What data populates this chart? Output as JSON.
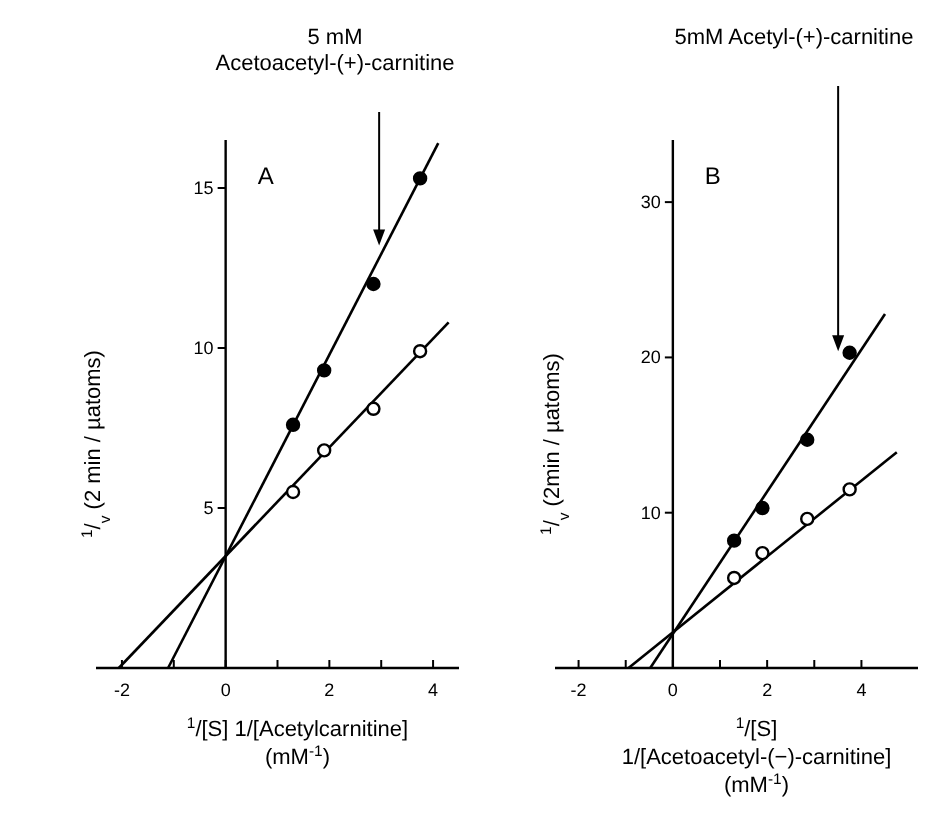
{
  "chart_data": [
    {
      "type": "scatter",
      "title": "A",
      "xlabel": "$^{1}$/[S]  1/[Acetylcarnitine]  (mM$^{-1}$)",
      "ylabel": "$^{1}$/$_{v}$  (2 min / µatoms)",
      "xlim": [
        -2.5,
        4.5
      ],
      "ylim": [
        0,
        16.5
      ],
      "xticks": [
        -2,
        {
          "value": -1,
          "label": null
        },
        0,
        {
          "value": 1,
          "label": null
        },
        2,
        {
          "value": 3,
          "label": null
        },
        4
      ],
      "yticks": [
        5,
        10,
        15
      ],
      "annotations": [
        "5 mM Acetoacetyl-(+)-carnitine"
      ],
      "series": [
        {
          "color": "#000000",
          "marker": "circle",
          "x": [
            1.3,
            1.9,
            2.85,
            3.75
          ],
          "values": [
            7.6,
            9.3,
            12,
            15.3
          ]
        },
        {
          "color": "#ffffff",
          "marker": "circle",
          "x": [
            1.3,
            1.9,
            2.85,
            3.75
          ],
          "values": [
            5.5,
            6.8,
            8.1,
            9.9
          ]
        },
        {
          "type": "line",
          "color": "#000000",
          "x": [
            -1.11,
            4.1
          ],
          "values": [
            0,
            16.4
          ]
        },
        {
          "type": "line",
          "color": "#000000",
          "x": [
            -2.06,
            4.3
          ],
          "values": [
            0,
            10.8
          ]
        }
      ]
    },
    {
      "type": "scatter",
      "title": "B",
      "xlabel": "$^{1}$/[S]  1/[Acetoacetyl-(−)-carnitine]  (mM$^{-1}$)",
      "ylabel": "$^{1}$/$_{v}$  (2min / µatoms)",
      "xlim": [
        -2.5,
        5.2
      ],
      "ylim": [
        0,
        34
      ],
      "xticks": [
        -2,
        {
          "value": -1,
          "label": null
        },
        0,
        {
          "value": 1,
          "label": null
        },
        2,
        {
          "value": 3,
          "label": null
        },
        4
      ],
      "yticks": [
        10,
        20,
        30
      ],
      "annotations": [
        "5mM Acetyl-(+)-carnitine"
      ],
      "series": [
        {
          "color": "#000000",
          "marker": "circle",
          "x": [
            1.3,
            1.9,
            2.85,
            3.75
          ],
          "values": [
            8.2,
            10.3,
            14.7,
            20.3
          ]
        },
        {
          "color": "#ffffff",
          "marker": "circle",
          "x": [
            1.3,
            1.9,
            2.85,
            3.75
          ],
          "values": [
            5.8,
            7.4,
            9.6,
            11.5
          ]
        },
        {
          "type": "line",
          "color": "#000000",
          "x": [
            -0.48,
            4.5
          ],
          "values": [
            0,
            22.8
          ]
        },
        {
          "type": "line",
          "color": "#000000",
          "x": [
            -0.94,
            4.75
          ],
          "values": [
            0,
            13.9
          ]
        }
      ]
    }
  ]
}
